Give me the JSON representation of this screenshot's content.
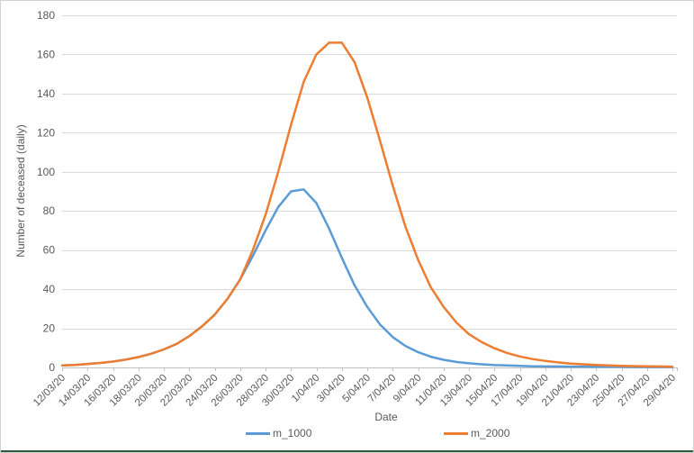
{
  "window": {
    "background": "#FFFFFF",
    "border_color": "#D2D2D2",
    "bottom_edge_color": "#2E5939"
  },
  "chart_data": {
    "type": "line",
    "title": "",
    "xlabel": "Date",
    "ylabel": "Number of deceased (daily)",
    "ylim": [
      0,
      180
    ],
    "yticks": [
      0,
      20,
      40,
      60,
      80,
      100,
      120,
      140,
      160,
      180
    ],
    "grid": "horizontal-only",
    "legend_position": "bottom",
    "gridline_color": "#D9D9D9",
    "axis_color": "#BFBFBF",
    "text_color": "#595959",
    "x": [
      "12/03/20",
      "13/03/20",
      "14/03/20",
      "15/03/20",
      "16/03/20",
      "17/03/20",
      "18/03/20",
      "19/03/20",
      "20/03/20",
      "21/03/20",
      "22/03/20",
      "23/03/20",
      "24/03/20",
      "25/03/20",
      "26/03/20",
      "27/03/20",
      "28/03/20",
      "29/03/20",
      "30/03/20",
      "31/03/20",
      "1/04/20",
      "2/04/20",
      "3/04/20",
      "4/04/20",
      "5/04/20",
      "6/04/20",
      "7/04/20",
      "8/04/20",
      "9/04/20",
      "10/04/20",
      "11/04/20",
      "12/04/20",
      "13/04/20",
      "14/04/20",
      "15/04/20",
      "16/04/20",
      "17/04/20",
      "18/04/20",
      "19/04/20",
      "20/04/20",
      "21/04/20",
      "22/04/20",
      "23/04/20",
      "24/04/20",
      "25/04/20",
      "26/04/20",
      "27/04/20",
      "28/04/20",
      "29/04/20"
    ],
    "xtick_labels": [
      "12/03/20",
      "14/03/20",
      "16/03/20",
      "18/03/20",
      "20/03/20",
      "22/03/20",
      "24/03/20",
      "26/03/20",
      "28/03/20",
      "30/03/20",
      "1/04/20",
      "3/04/20",
      "5/04/20",
      "7/04/20",
      "9/04/20",
      "11/04/20",
      "13/04/20",
      "15/04/20",
      "17/04/20",
      "19/04/20",
      "21/04/20",
      "23/04/20",
      "25/04/20",
      "27/04/20",
      "29/04/20"
    ],
    "xtick_every_n_points": 2,
    "series": [
      {
        "name": "m_1000",
        "color": "#5B9BD5",
        "values": [
          1,
          1.3,
          1.8,
          2.3,
          3,
          4,
          5.3,
          7,
          9.2,
          12,
          16,
          21,
          27,
          35,
          45,
          57,
          70,
          82,
          90,
          91,
          84,
          71,
          56,
          42,
          31,
          22,
          15.5,
          11,
          7.8,
          5.5,
          3.9,
          2.8,
          2.1,
          1.6,
          1.2,
          1,
          0.8,
          0.6,
          0.5,
          0.5,
          0.4,
          0.4,
          0.3,
          0.3,
          0.3,
          0.2,
          0.2,
          0.2,
          0.2
        ]
      },
      {
        "name": "m_2000",
        "color": "#ED7D31",
        "values": [
          1,
          1.3,
          1.8,
          2.3,
          3,
          4,
          5.3,
          7,
          9.2,
          12,
          16,
          21,
          27,
          35,
          45,
          60,
          78,
          100,
          124,
          146,
          160,
          166,
          166,
          156,
          138,
          116,
          93,
          72,
          55,
          41,
          31,
          23,
          17,
          13,
          9.8,
          7.4,
          5.6,
          4.3,
          3.3,
          2.6,
          2,
          1.6,
          1.3,
          1,
          0.8,
          0.7,
          0.6,
          0.5,
          0.4
        ]
      }
    ]
  }
}
